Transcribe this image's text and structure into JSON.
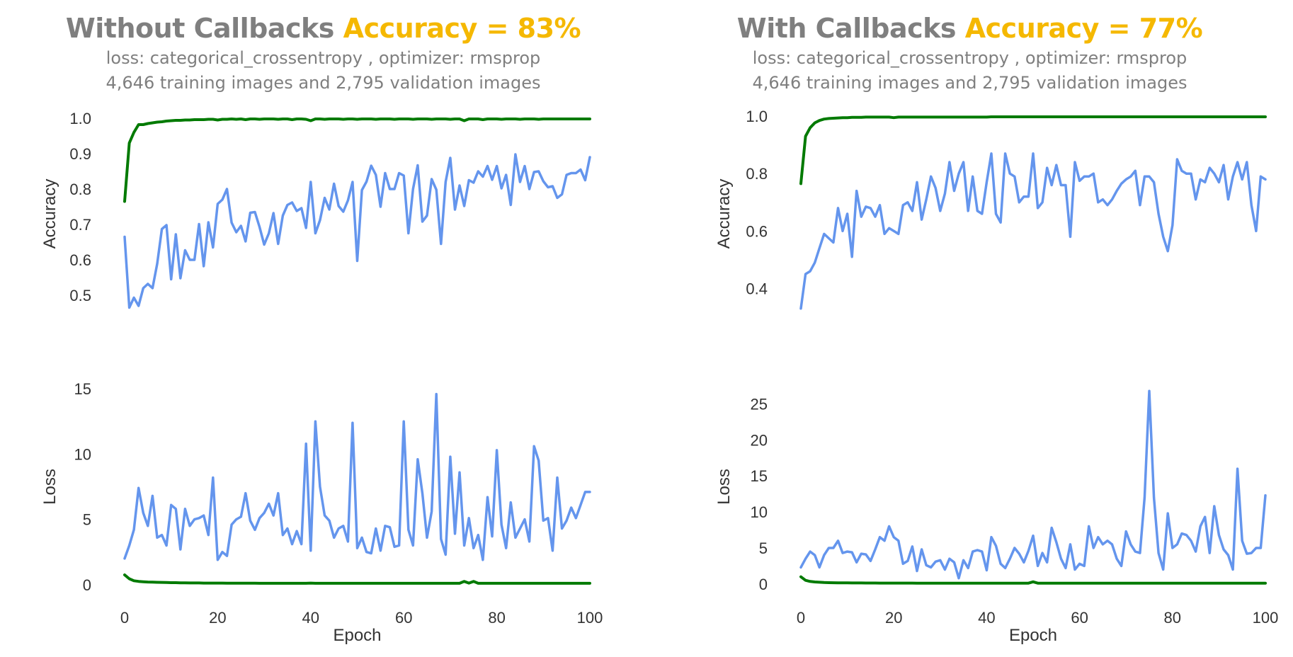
{
  "panels": [
    {
      "title_main": "Without Callbacks ",
      "title_accuracy": "Accuracy = 83%",
      "subtitle_line1": "loss: categorical_crossentropy , optimizer: rmsprop",
      "subtitle_line2": "4,646 training images and 2,795 validation images"
    },
    {
      "title_main": "With Callbacks ",
      "title_accuracy": "Accuracy = 77%",
      "subtitle_line1": "loss: categorical_crossentropy , optimizer: rmsprop",
      "subtitle_line2": "4,646 training images and 2,795 validation images"
    }
  ],
  "colors": {
    "train": "#007a00",
    "validation": "#6495ed",
    "title_gray": "#7f7f7f",
    "accent": "#f5b800"
  },
  "chart_data": [
    {
      "type": "line",
      "panel": "Without Callbacks",
      "plot": "accuracy",
      "ylabel": "Accuracy",
      "xlim": [
        0,
        100
      ],
      "ylim": [
        0.43,
        1.03
      ],
      "yticks": [
        0.5,
        0.6,
        0.7,
        0.8,
        0.9,
        1.0
      ],
      "ytick_labels": [
        "0.5",
        "0.6",
        "0.7",
        "0.8",
        "0.9",
        "1.0"
      ],
      "grid": false,
      "series": [
        {
          "role": "train",
          "x_end": 100,
          "values": [
            0.765,
            0.93,
            0.96,
            0.982,
            0.982,
            0.985,
            0.987,
            0.989,
            0.99,
            0.992,
            0.993,
            0.994,
            0.994,
            0.995,
            0.995,
            0.996,
            0.996,
            0.996,
            0.997,
            0.997,
            0.995,
            0.997,
            0.997,
            0.998,
            0.997,
            0.998,
            0.996,
            0.998,
            0.998,
            0.997,
            0.998,
            0.998,
            0.998,
            0.997,
            0.998,
            0.998,
            0.996,
            0.998,
            0.998,
            0.997,
            0.993,
            0.998,
            0.998,
            0.997,
            0.998,
            0.998,
            0.998,
            0.997,
            0.998,
            0.998,
            0.997,
            0.998,
            0.998,
            0.998,
            0.997,
            0.998,
            0.998,
            0.998,
            0.997,
            0.998,
            0.998,
            0.998,
            0.997,
            0.998,
            0.998,
            0.998,
            0.997,
            0.998,
            0.998,
            0.998,
            0.997,
            0.998,
            0.998,
            0.993,
            0.998,
            0.998,
            0.998,
            0.996,
            0.998,
            0.998,
            0.998,
            0.997,
            0.998,
            0.998,
            0.998,
            0.997,
            0.998,
            0.998,
            0.998,
            0.997,
            0.998,
            0.998,
            0.998,
            0.998,
            0.998,
            0.998,
            0.998,
            0.998,
            0.998,
            0.998,
            0.998
          ]
        },
        {
          "role": "validation",
          "x_end": 100,
          "values": [
            0.665,
            0.465,
            0.493,
            0.47,
            0.52,
            0.532,
            0.52,
            0.589,
            0.687,
            0.698,
            0.545,
            0.672,
            0.548,
            0.627,
            0.6,
            0.6,
            0.701,
            0.582,
            0.706,
            0.635,
            0.758,
            0.77,
            0.8,
            0.705,
            0.678,
            0.696,
            0.652,
            0.733,
            0.735,
            0.693,
            0.643,
            0.675,
            0.732,
            0.645,
            0.725,
            0.755,
            0.762,
            0.738,
            0.746,
            0.69,
            0.82,
            0.675,
            0.712,
            0.775,
            0.742,
            0.815,
            0.752,
            0.736,
            0.768,
            0.82,
            0.597,
            0.797,
            0.821,
            0.866,
            0.84,
            0.75,
            0.845,
            0.8,
            0.8,
            0.845,
            0.838,
            0.675,
            0.8,
            0.867,
            0.708,
            0.725,
            0.828,
            0.798,
            0.645,
            0.82,
            0.888,
            0.742,
            0.81,
            0.752,
            0.825,
            0.818,
            0.85,
            0.835,
            0.865,
            0.826,
            0.865,
            0.802,
            0.84,
            0.755,
            0.898,
            0.82,
            0.865,
            0.8,
            0.848,
            0.85,
            0.822,
            0.805,
            0.808,
            0.775,
            0.785,
            0.84,
            0.845,
            0.845,
            0.855,
            0.825,
            0.89
          ]
        }
      ]
    },
    {
      "type": "line",
      "panel": "Without Callbacks",
      "plot": "loss",
      "ylabel": "Loss",
      "xlabel": "Epoch",
      "xlim": [
        0,
        100
      ],
      "ylim": [
        -0.5,
        15.5
      ],
      "xticks": [
        0,
        20,
        40,
        60,
        80,
        100
      ],
      "xtick_labels": [
        "0",
        "20",
        "40",
        "60",
        "80",
        "100"
      ],
      "yticks": [
        0,
        5,
        10,
        15
      ],
      "ytick_labels": [
        "0",
        "5",
        "10",
        "15"
      ],
      "grid": false,
      "series": [
        {
          "role": "train",
          "x_end": 100,
          "values": [
            0.75,
            0.45,
            0.3,
            0.25,
            0.22,
            0.2,
            0.19,
            0.18,
            0.17,
            0.16,
            0.15,
            0.15,
            0.14,
            0.14,
            0.13,
            0.13,
            0.13,
            0.12,
            0.12,
            0.12,
            0.12,
            0.12,
            0.11,
            0.11,
            0.11,
            0.11,
            0.11,
            0.11,
            0.11,
            0.1,
            0.1,
            0.1,
            0.1,
            0.1,
            0.1,
            0.1,
            0.1,
            0.1,
            0.1,
            0.1,
            0.12,
            0.1,
            0.1,
            0.1,
            0.1,
            0.1,
            0.1,
            0.1,
            0.1,
            0.1,
            0.1,
            0.1,
            0.1,
            0.1,
            0.1,
            0.1,
            0.1,
            0.1,
            0.1,
            0.1,
            0.1,
            0.1,
            0.1,
            0.1,
            0.1,
            0.1,
            0.1,
            0.1,
            0.1,
            0.1,
            0.1,
            0.1,
            0.1,
            0.25,
            0.12,
            0.25,
            0.1,
            0.1,
            0.1,
            0.1,
            0.1,
            0.1,
            0.1,
            0.1,
            0.1,
            0.1,
            0.1,
            0.1,
            0.1,
            0.1,
            0.1,
            0.1,
            0.1,
            0.1,
            0.1,
            0.1,
            0.1,
            0.1,
            0.1,
            0.1,
            0.1
          ]
        },
        {
          "role": "validation",
          "x_end": 100,
          "values": [
            2.0,
            3.0,
            4.2,
            7.4,
            5.5,
            4.5,
            6.8,
            3.6,
            3.8,
            3.0,
            6.1,
            5.8,
            2.7,
            5.8,
            4.5,
            5.0,
            5.1,
            5.3,
            3.8,
            8.2,
            1.9,
            2.5,
            2.2,
            4.6,
            5.0,
            5.2,
            7.0,
            4.9,
            4.2,
            5.1,
            5.5,
            6.2,
            5.3,
            7.0,
            3.8,
            4.3,
            3.1,
            4.1,
            3.1,
            10.8,
            2.6,
            12.5,
            7.5,
            5.3,
            4.9,
            3.6,
            4.3,
            4.5,
            3.3,
            12.4,
            2.8,
            3.6,
            2.5,
            2.4,
            4.3,
            2.6,
            4.5,
            4.4,
            2.9,
            3.0,
            12.5,
            4.2,
            3.0,
            9.6,
            7.0,
            3.6,
            5.6,
            14.6,
            3.5,
            2.3,
            9.8,
            3.9,
            8.6,
            3.0,
            5.1,
            2.8,
            3.8,
            1.9,
            6.7,
            3.7,
            10.3,
            4.6,
            2.8,
            6.3,
            3.6,
            4.3,
            5.0,
            3.3,
            10.6,
            9.5,
            4.9,
            5.1,
            2.6,
            8.2,
            4.3,
            4.9,
            5.9,
            5.1,
            6.1,
            7.1,
            7.1
          ]
        }
      ]
    },
    {
      "type": "line",
      "panel": "With Callbacks",
      "plot": "accuracy",
      "ylabel": "Accuracy",
      "xlim": [
        0,
        100
      ],
      "ylim": [
        0.29,
        1.03
      ],
      "yticks": [
        0.4,
        0.6,
        0.8,
        1.0
      ],
      "ytick_labels": [
        "0.4",
        "0.6",
        "0.8",
        "1.0"
      ],
      "grid": false,
      "series": [
        {
          "role": "train",
          "x_end": 100,
          "values": [
            0.765,
            0.93,
            0.96,
            0.977,
            0.985,
            0.99,
            0.992,
            0.993,
            0.994,
            0.995,
            0.995,
            0.996,
            0.996,
            0.996,
            0.997,
            0.997,
            0.997,
            0.997,
            0.997,
            0.997,
            0.995,
            0.997,
            0.997,
            0.997,
            0.997,
            0.997,
            0.997,
            0.997,
            0.997,
            0.997,
            0.997,
            0.997,
            0.997,
            0.997,
            0.997,
            0.997,
            0.997,
            0.997,
            0.997,
            0.997,
            0.997,
            0.998,
            0.998,
            0.998,
            0.998,
            0.998,
            0.998,
            0.998,
            0.998,
            0.998,
            0.998,
            0.998,
            0.998,
            0.998,
            0.998,
            0.998,
            0.998,
            0.998,
            0.998,
            0.998,
            0.998,
            0.998,
            0.998,
            0.998,
            0.998,
            0.998,
            0.998,
            0.998,
            0.998,
            0.998,
            0.998,
            0.998,
            0.998,
            0.998,
            0.998,
            0.998,
            0.998,
            0.998,
            0.998,
            0.998,
            0.998,
            0.998,
            0.998,
            0.998,
            0.998,
            0.998,
            0.998,
            0.998,
            0.998,
            0.998,
            0.998,
            0.998,
            0.998,
            0.998,
            0.998,
            0.998,
            0.998,
            0.998,
            0.998,
            0.998,
            0.998
          ]
        },
        {
          "role": "validation",
          "x_end": 100,
          "values": [
            0.33,
            0.45,
            0.46,
            0.49,
            0.54,
            0.59,
            0.575,
            0.56,
            0.68,
            0.6,
            0.66,
            0.51,
            0.74,
            0.65,
            0.685,
            0.68,
            0.65,
            0.69,
            0.59,
            0.61,
            0.6,
            0.59,
            0.69,
            0.7,
            0.67,
            0.77,
            0.64,
            0.71,
            0.79,
            0.75,
            0.67,
            0.73,
            0.84,
            0.74,
            0.8,
            0.84,
            0.67,
            0.79,
            0.67,
            0.66,
            0.77,
            0.87,
            0.66,
            0.63,
            0.87,
            0.8,
            0.79,
            0.7,
            0.72,
            0.72,
            0.87,
            0.68,
            0.7,
            0.82,
            0.76,
            0.83,
            0.76,
            0.76,
            0.58,
            0.84,
            0.775,
            0.79,
            0.79,
            0.8,
            0.7,
            0.71,
            0.69,
            0.71,
            0.74,
            0.765,
            0.78,
            0.79,
            0.81,
            0.69,
            0.79,
            0.79,
            0.77,
            0.66,
            0.58,
            0.53,
            0.62,
            0.85,
            0.81,
            0.8,
            0.8,
            0.71,
            0.78,
            0.77,
            0.82,
            0.8,
            0.77,
            0.83,
            0.71,
            0.79,
            0.84,
            0.78,
            0.84,
            0.69,
            0.6,
            0.79,
            0.78
          ]
        }
      ]
    },
    {
      "type": "line",
      "panel": "With Callbacks",
      "plot": "loss",
      "ylabel": "Loss",
      "xlabel": "Epoch",
      "xlim": [
        0,
        100
      ],
      "ylim": [
        -1,
        28
      ],
      "xticks": [
        0,
        20,
        40,
        60,
        80,
        100
      ],
      "xtick_labels": [
        "0",
        "20",
        "40",
        "60",
        "80",
        "100"
      ],
      "yticks": [
        0,
        5,
        10,
        15,
        20,
        25
      ],
      "ytick_labels": [
        "0",
        "5",
        "10",
        "15",
        "20",
        "25"
      ],
      "grid": false,
      "series": [
        {
          "role": "train",
          "x_end": 100,
          "values": [
            1.0,
            0.5,
            0.35,
            0.28,
            0.24,
            0.2,
            0.18,
            0.17,
            0.16,
            0.15,
            0.15,
            0.14,
            0.14,
            0.14,
            0.13,
            0.13,
            0.13,
            0.12,
            0.12,
            0.12,
            0.12,
            0.12,
            0.12,
            0.12,
            0.12,
            0.11,
            0.11,
            0.11,
            0.11,
            0.11,
            0.11,
            0.11,
            0.11,
            0.11,
            0.11,
            0.11,
            0.11,
            0.11,
            0.11,
            0.11,
            0.11,
            0.11,
            0.11,
            0.11,
            0.11,
            0.11,
            0.11,
            0.11,
            0.11,
            0.11,
            0.3,
            0.11,
            0.11,
            0.11,
            0.11,
            0.11,
            0.11,
            0.11,
            0.11,
            0.11,
            0.11,
            0.11,
            0.11,
            0.11,
            0.11,
            0.11,
            0.11,
            0.11,
            0.11,
            0.11,
            0.11,
            0.11,
            0.11,
            0.11,
            0.11,
            0.11,
            0.11,
            0.11,
            0.11,
            0.11,
            0.11,
            0.11,
            0.11,
            0.11,
            0.11,
            0.11,
            0.11,
            0.11,
            0.11,
            0.11,
            0.11,
            0.11,
            0.11,
            0.11,
            0.11,
            0.11,
            0.11,
            0.11,
            0.11,
            0.11,
            0.11
          ]
        },
        {
          "role": "validation",
          "x_end": 100,
          "values": [
            2.3,
            3.5,
            4.5,
            4.0,
            2.3,
            4.0,
            5.0,
            5.0,
            6.0,
            4.3,
            4.5,
            4.4,
            3.0,
            4.2,
            4.1,
            3.2,
            4.8,
            6.5,
            6.0,
            8.0,
            6.5,
            6.0,
            2.8,
            3.2,
            5.2,
            1.8,
            4.8,
            2.6,
            2.3,
            3.1,
            3.3,
            2.0,
            3.5,
            3.0,
            0.8,
            3.3,
            2.2,
            4.5,
            4.7,
            4.5,
            1.9,
            6.5,
            5.3,
            2.8,
            2.2,
            3.5,
            5.0,
            4.2,
            3.0,
            4.6,
            6.7,
            2.5,
            4.3,
            3.0,
            7.8,
            5.8,
            3.5,
            2.2,
            5.5,
            2.0,
            2.8,
            2.5,
            8.0,
            5.0,
            6.5,
            5.5,
            6.0,
            5.5,
            3.5,
            2.5,
            7.3,
            5.5,
            4.5,
            4.3,
            12.0,
            26.8,
            12.0,
            4.3,
            2.0,
            9.8,
            5.0,
            5.5,
            7.0,
            6.8,
            6.0,
            4.5,
            8.0,
            9.3,
            4.3,
            10.8,
            6.8,
            4.8,
            4.0,
            2.0,
            16.0,
            6.0,
            4.2,
            4.3,
            5.0,
            5.0,
            12.3
          ]
        }
      ]
    }
  ]
}
